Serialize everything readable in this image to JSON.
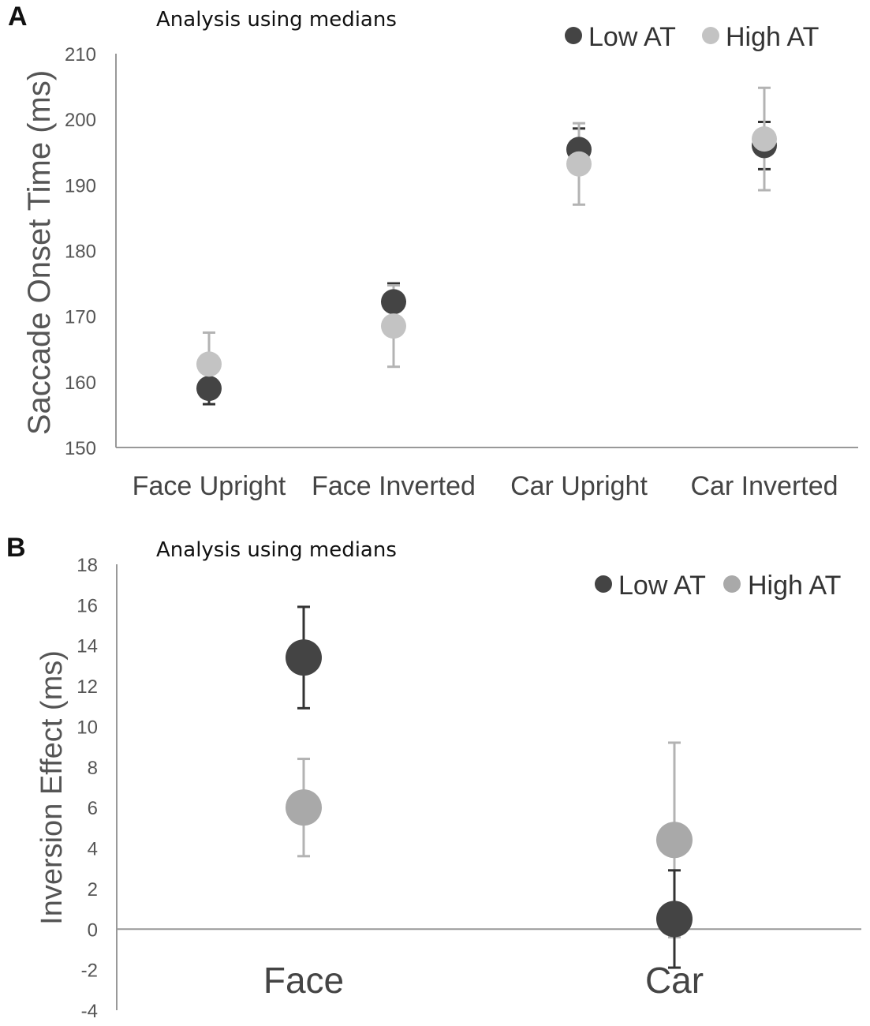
{
  "colors": {
    "low": "#444444",
    "highA": "#c3c3c3",
    "highB": "#a9a9a9",
    "lowErr": "#333333",
    "highErr": "#b3b3b3"
  },
  "chart_data": [
    {
      "panel": "A",
      "type": "scatter",
      "title": "Analysis using medians",
      "xlabel": "",
      "ylabel": "Saccade Onset Time (ms)",
      "categories": [
        "Face Upright",
        "Face Inverted",
        "Car Upright",
        "Car Inverted"
      ],
      "ylim": [
        150,
        210
      ],
      "yticks": [
        150,
        160,
        170,
        180,
        190,
        200,
        210
      ],
      "legend_position": "top-right",
      "series": [
        {
          "name": "Low AT",
          "values": [
            159,
            172.2,
            195.4,
            196
          ],
          "error": [
            2.4,
            2.8,
            3.2,
            3.6
          ]
        },
        {
          "name": "High AT",
          "values": [
            162.7,
            168.5,
            193.2,
            197
          ],
          "error": [
            4.8,
            6.2,
            6.2,
            7.8
          ]
        }
      ]
    },
    {
      "panel": "B",
      "type": "scatter",
      "title": "Analysis using medians",
      "xlabel": "",
      "ylabel": "Inversion Effect (ms)",
      "categories": [
        "Face",
        "Car"
      ],
      "ylim": [
        -4,
        18
      ],
      "yticks": [
        -4,
        -2,
        0,
        2,
        4,
        6,
        8,
        10,
        12,
        14,
        16,
        18
      ],
      "legend_position": "top-right",
      "series": [
        {
          "name": "Low AT",
          "values": [
            13.4,
            0.5
          ],
          "error": [
            2.5,
            2.4
          ]
        },
        {
          "name": "High AT",
          "values": [
            6.0,
            4.4
          ],
          "error": [
            2.4,
            4.8
          ]
        }
      ]
    }
  ]
}
